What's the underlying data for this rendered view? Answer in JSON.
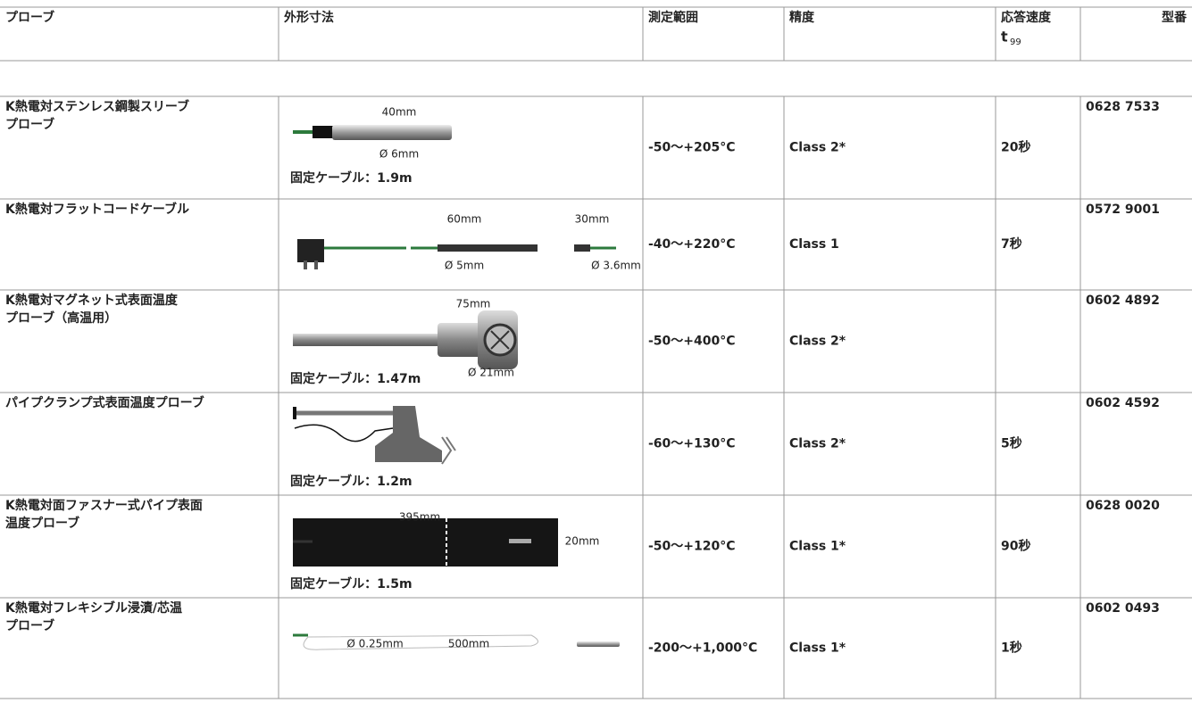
{
  "header": {
    "columns": [
      "プローブ",
      "外形寸法",
      "測定範囲",
      "精度",
      "応答速度",
      "型番"
    ],
    "response_symbol": "t",
    "response_subscript": "99"
  },
  "rows": [
    {
      "probe": [
        "K熱電対ステンレス鋼製スリーブ",
        "プローブ"
      ],
      "dimension_labels": [
        "40mm",
        "Ø 6mm"
      ],
      "cable": "固定ケーブル：1.9m",
      "range": "-50～+205°C",
      "accuracy": "Class 2*",
      "response": "20秒",
      "model": "0628 7533"
    },
    {
      "probe": [
        "K熱電対フラットコードケーブル"
      ],
      "dimension_labels": [
        "60mm",
        "30mm",
        "Ø 5mm",
        "Ø 3.6mm"
      ],
      "range": "-40～+220°C",
      "accuracy": "Class 1",
      "response": "7秒",
      "model": "0572 9001"
    },
    {
      "probe": [
        "K熱電対マグネット式表面温度",
        "プローブ（高温用）"
      ],
      "dimension_labels": [
        "75mm",
        "Ø 21mm"
      ],
      "cable": "固定ケーブル：1.47m",
      "range": "-50～+400°C",
      "accuracy": "Class 2*",
      "model": "0602 4892"
    },
    {
      "probe": [
        "パイプクランプ式表面温度プローブ"
      ],
      "dimension_labels": [],
      "cable": "固定ケーブル：1.2m",
      "range": "-60～+130°C",
      "accuracy": "Class 2*",
      "response": "5秒",
      "model": "0602 4592"
    },
    {
      "probe": [
        "K熱電対面ファスナー式パイプ表面",
        "温度プローブ"
      ],
      "dimension_labels": [
        "395mm",
        "20mm"
      ],
      "cable": "固定ケーブル：1.5m",
      "range": "-50～+120°C",
      "accuracy": "Class 1*",
      "response": "90秒",
      "model": "0628 0020"
    },
    {
      "probe": [
        "K熱電対フレキシブル浸漬/芯温",
        "プローブ"
      ],
      "dimension_labels": [
        "Ø 0.25mm",
        "500mm"
      ],
      "range": "-200～+1,000°C",
      "accuracy": "Class 1*",
      "response": "1秒",
      "model": "0602 0493"
    }
  ]
}
